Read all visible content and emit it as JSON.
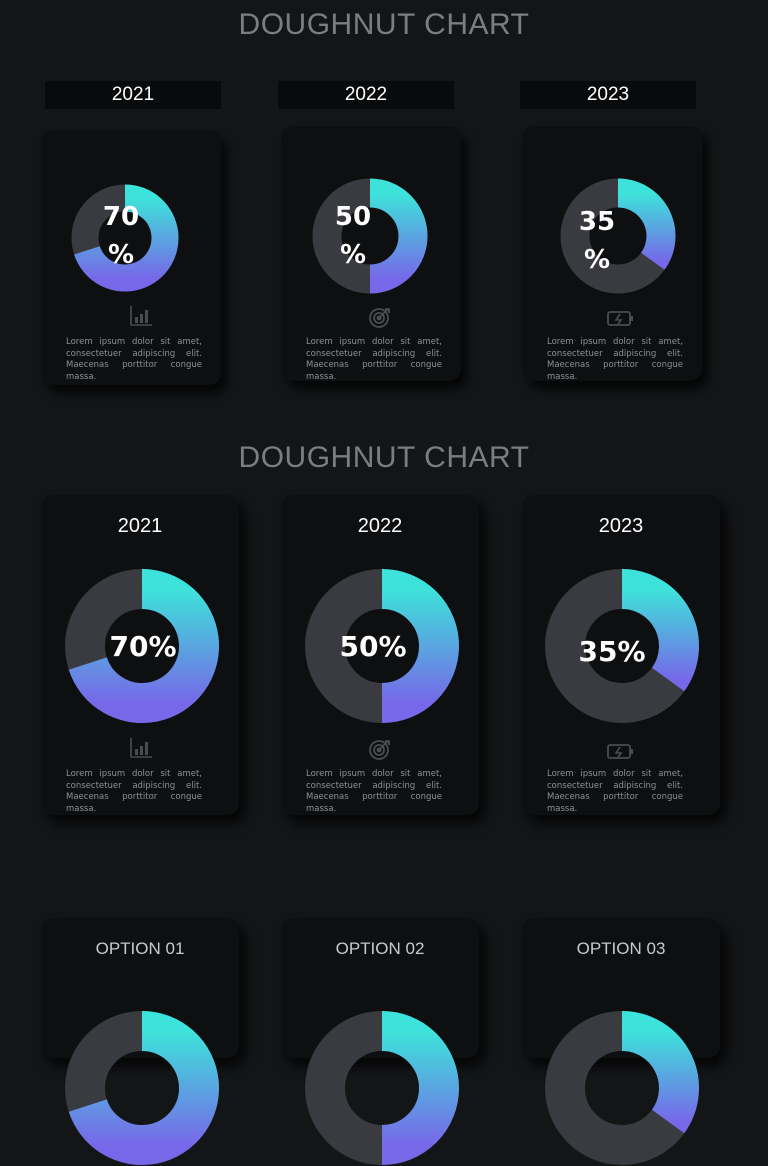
{
  "colors": {
    "background": "#131517",
    "card": "#0e0f11",
    "gradient_start": "#3de3da",
    "gradient_end": "#7668e8",
    "track": "#393b40",
    "title": "#7b7d81"
  },
  "sections": [
    {
      "title": "DOUGHNUT CHART",
      "cards": [
        {
          "year": "2021",
          "percent_label_line1": "70",
          "percent_label_line2": "%",
          "icon": "bar-chart-icon",
          "text": "Lorem ipsum dolor sit amet, consectetuer adipiscing elit. Maecenas porttitor congue massa."
        },
        {
          "year": "2022",
          "percent_label_line1": "50",
          "percent_label_line2": "%",
          "icon": "target-icon",
          "text": "Lorem ipsum dolor sit amet, consectetuer adipiscing elit. Maecenas porttitor congue massa."
        },
        {
          "year": "2023",
          "percent_label_line1": "35",
          "percent_label_line2": "%",
          "icon": "battery-icon",
          "text": "Lorem ipsum dolor sit amet, consectetuer adipiscing elit. Maecenas porttitor congue massa."
        }
      ]
    },
    {
      "title": "DOUGHNUT CHART",
      "cards": [
        {
          "year": "2021",
          "percent_label": "70%",
          "icon": "bar-chart-icon",
          "text": "Lorem ipsum dolor sit amet, consectetuer adipiscing elit. Maecenas porttitor congue massa."
        },
        {
          "year": "2022",
          "percent_label": "50%",
          "icon": "target-icon",
          "text": "Lorem ipsum dolor sit amet, consectetuer adipiscing elit. Maecenas porttitor congue massa."
        },
        {
          "year": "2023",
          "percent_label": "35%",
          "icon": "battery-icon",
          "text": "Lorem ipsum dolor sit amet, consectetuer adipiscing elit. Maecenas porttitor congue massa."
        }
      ]
    },
    {
      "title": "",
      "cards": [
        {
          "label": "OPTION 01"
        },
        {
          "label": "OPTION 02"
        },
        {
          "label": "OPTION 03"
        }
      ]
    }
  ],
  "chart_data": [
    {
      "type": "pie",
      "title": "",
      "categories": [
        "2021"
      ],
      "values": [
        70
      ],
      "unit": "%"
    },
    {
      "type": "pie",
      "title": "",
      "categories": [
        "2022"
      ],
      "values": [
        50
      ],
      "unit": "%"
    },
    {
      "type": "pie",
      "title": "",
      "categories": [
        "2023"
      ],
      "values": [
        35
      ],
      "unit": "%"
    },
    {
      "type": "pie",
      "title": "",
      "categories": [
        "2021"
      ],
      "values": [
        70
      ],
      "unit": "%"
    },
    {
      "type": "pie",
      "title": "",
      "categories": [
        "2022"
      ],
      "values": [
        50
      ],
      "unit": "%"
    },
    {
      "type": "pie",
      "title": "",
      "categories": [
        "2023"
      ],
      "values": [
        35
      ],
      "unit": "%"
    }
  ]
}
